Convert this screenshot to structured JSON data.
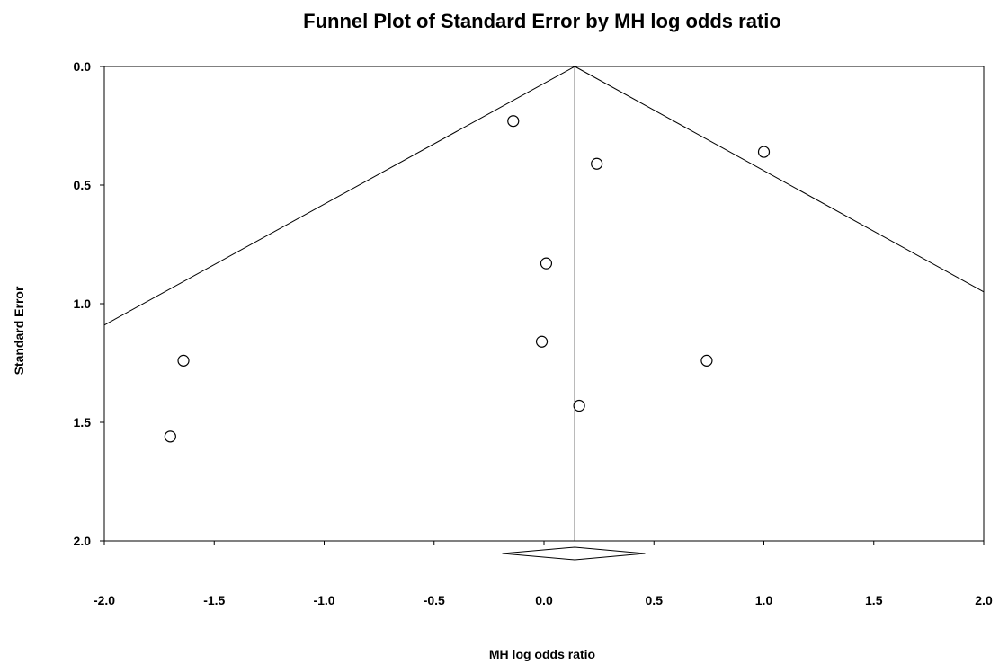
{
  "chart_data": {
    "type": "scatter",
    "title": "Funnel Plot of Standard Error by MH log odds ratio",
    "xlabel": "MH log odds ratio",
    "ylabel": "Standard Error",
    "xlim": [
      -2.0,
      2.0
    ],
    "ylim": [
      0.0,
      2.0
    ],
    "y_inverted": true,
    "x_ticks": [
      "-2.0",
      "-1.5",
      "-1.0",
      "-0.5",
      "0.0",
      "0.5",
      "1.0",
      "1.5",
      "2.0"
    ],
    "y_ticks": [
      "0.0",
      "0.5",
      "1.0",
      "1.5",
      "2.0"
    ],
    "grid": false,
    "marker": "open-circle",
    "points": [
      {
        "x": -0.14,
        "y": 0.23
      },
      {
        "x": 0.24,
        "y": 0.41
      },
      {
        "x": 1.0,
        "y": 0.36
      },
      {
        "x": 0.01,
        "y": 0.83
      },
      {
        "x": -0.01,
        "y": 1.16
      },
      {
        "x": -1.64,
        "y": 1.24
      },
      {
        "x": 0.74,
        "y": 1.24
      },
      {
        "x": 0.16,
        "y": 1.43
      },
      {
        "x": -1.7,
        "y": 1.56
      }
    ],
    "summary_effect": 0.14,
    "funnel": {
      "apex": {
        "x": 0.14,
        "y": 0.0
      },
      "left_end": {
        "x": -2.0,
        "y": 1.09
      },
      "right_end": {
        "x": 2.0,
        "y": 0.95
      }
    },
    "summary_diamond": {
      "center": 0.14,
      "lower": -0.19,
      "upper": 0.46
    }
  }
}
